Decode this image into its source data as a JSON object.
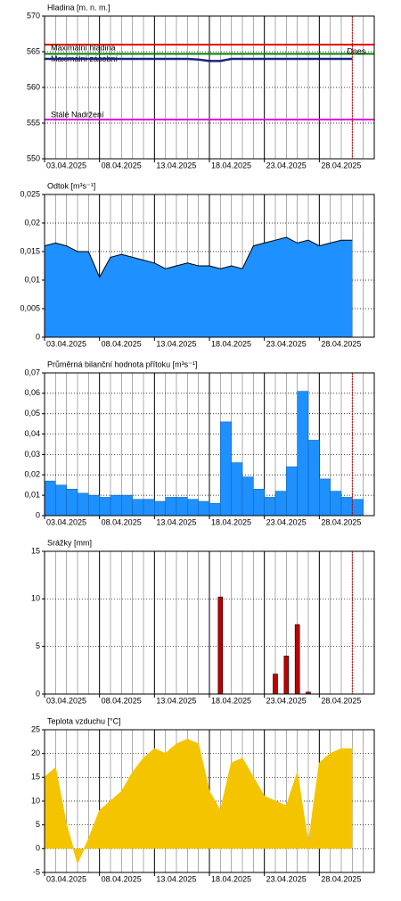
{
  "chart_data": [
    {
      "type": "line",
      "title": "Hladina [m. n. m.]",
      "color": "#1a237e",
      "x": [
        "03.04.2025",
        "04.04.2025",
        "05.04.2025",
        "06.04.2025",
        "07.04.2025",
        "08.04.2025",
        "09.04.2025",
        "10.04.2025",
        "11.04.2025",
        "12.04.2025",
        "13.04.2025",
        "14.04.2025",
        "15.04.2025",
        "16.04.2025",
        "17.04.2025",
        "18.04.2025",
        "19.04.2025",
        "20.04.2025",
        "21.04.2025",
        "22.04.2025",
        "23.04.2025",
        "24.04.2025",
        "25.04.2025",
        "26.04.2025",
        "27.04.2025",
        "28.04.2025",
        "29.04.2025",
        "30.04.2025",
        "01.05.2025"
      ],
      "values": [
        564,
        564,
        564,
        564,
        564,
        564,
        564,
        564,
        564,
        564,
        564,
        564,
        564,
        564,
        563.9,
        563.7,
        563.7,
        564,
        564,
        564,
        564,
        564,
        564,
        564,
        564,
        564,
        564,
        564,
        564
      ],
      "reference_lines": [
        {
          "label": "Maximální hladina",
          "value": 566,
          "color": "#e00000",
          "text_color": "#f06020"
        },
        {
          "label": "Maximální zásobní",
          "value": 564.7,
          "color": "#008000",
          "text_color": "#2e8b57"
        },
        {
          "label": "Stálé Nadržení",
          "value": 555.5,
          "color": "#e000e0",
          "text_color": "#e000e0"
        }
      ],
      "today": {
        "label": "Dnes",
        "x": "01.05.2025",
        "color": "#c00000"
      },
      "xlim": [
        "03.04.2025",
        "03.05.2025"
      ],
      "xticks": [
        "03.04.2025",
        "08.04.2025",
        "13.04.2025",
        "18.04.2025",
        "23.04.2025",
        "28.04.2025"
      ],
      "ylim": [
        550,
        570
      ],
      "yticks": [
        550,
        555,
        560,
        565,
        570
      ],
      "grid": true
    },
    {
      "type": "area",
      "title": "Odtok [m³s⁻¹]",
      "color": "#1e90ff",
      "line_color": "#000000",
      "x": [
        "03.04.2025",
        "04.04.2025",
        "05.04.2025",
        "06.04.2025",
        "07.04.2025",
        "08.04.2025",
        "09.04.2025",
        "10.04.2025",
        "11.04.2025",
        "12.04.2025",
        "13.04.2025",
        "14.04.2025",
        "15.04.2025",
        "16.04.2025",
        "17.04.2025",
        "18.04.2025",
        "19.04.2025",
        "20.04.2025",
        "21.04.2025",
        "22.04.2025",
        "23.04.2025",
        "24.04.2025",
        "25.04.2025",
        "26.04.2025",
        "27.04.2025",
        "28.04.2025",
        "29.04.2025",
        "30.04.2025",
        "01.05.2025"
      ],
      "values": [
        0.016,
        0.0165,
        0.016,
        0.015,
        0.015,
        0.0105,
        0.014,
        0.0145,
        0.014,
        0.0135,
        0.013,
        0.012,
        0.0125,
        0.013,
        0.0125,
        0.0125,
        0.012,
        0.0125,
        0.012,
        0.016,
        0.0165,
        0.017,
        0.0175,
        0.0165,
        0.017,
        0.016,
        0.0165,
        0.017,
        0.017
      ],
      "xlim": [
        "03.04.2025",
        "03.05.2025"
      ],
      "xticks": [
        "03.04.2025",
        "08.04.2025",
        "13.04.2025",
        "18.04.2025",
        "23.04.2025",
        "28.04.2025"
      ],
      "ylim": [
        0,
        0.025
      ],
      "yticks": [
        0,
        {
          "value": 0.005,
          "label": "0,005"
        },
        {
          "value": 0.01,
          "label": "0,01"
        },
        {
          "value": 0.015,
          "label": "0,015"
        },
        {
          "value": 0.02,
          "label": "0,02"
        },
        {
          "value": 0.025,
          "label": "0,025"
        }
      ],
      "grid": true
    },
    {
      "type": "step",
      "title": "Průměrná bilanční hodnota přítoku   [m³s⁻¹]",
      "color": "#1e90ff",
      "x": [
        "03.04.2025",
        "04.04.2025",
        "05.04.2025",
        "06.04.2025",
        "07.04.2025",
        "08.04.2025",
        "09.04.2025",
        "10.04.2025",
        "11.04.2025",
        "12.04.2025",
        "13.04.2025",
        "14.04.2025",
        "15.04.2025",
        "16.04.2025",
        "17.04.2025",
        "18.04.2025",
        "19.04.2025",
        "20.04.2025",
        "21.04.2025",
        "22.04.2025",
        "23.04.2025",
        "24.04.2025",
        "25.04.2025",
        "26.04.2025",
        "27.04.2025",
        "28.04.2025",
        "29.04.2025",
        "30.04.2025",
        "01.05.2025"
      ],
      "values": [
        0.017,
        0.015,
        0.013,
        0.011,
        0.01,
        0.009,
        0.01,
        0.01,
        0.008,
        0.008,
        0.007,
        0.009,
        0.009,
        0.008,
        0.007,
        0.006,
        0.046,
        0.026,
        0.019,
        0.013,
        0.009,
        0.012,
        0.024,
        0.061,
        0.037,
        0.018,
        0.012,
        0.009,
        0.008
      ],
      "today": {
        "x": "01.05.2025",
        "color": "#c00000"
      },
      "xlim": [
        "03.04.2025",
        "03.05.2025"
      ],
      "xticks": [
        "03.04.2025",
        "08.04.2025",
        "13.04.2025",
        "18.04.2025",
        "23.04.2025",
        "28.04.2025"
      ],
      "ylim": [
        0,
        0.07
      ],
      "yticks": [
        0,
        {
          "value": 0.01,
          "label": "0,01"
        },
        {
          "value": 0.02,
          "label": "0,02"
        },
        {
          "value": 0.03,
          "label": "0,03"
        },
        {
          "value": 0.04,
          "label": "0,04"
        },
        {
          "value": 0.05,
          "label": "0,05"
        },
        {
          "value": 0.06,
          "label": "0,06"
        },
        {
          "value": 0.07,
          "label": "0,07"
        }
      ],
      "grid": true
    },
    {
      "type": "bar",
      "title": "Srážky [mm]",
      "color": "#c00000",
      "x": [
        "19.04.2025",
        "24.04.2025",
        "25.04.2025",
        "26.04.2025",
        "27.04.2025"
      ],
      "values": [
        10.2,
        2.1,
        4,
        7.3,
        0.2
      ],
      "today": {
        "x": "01.05.2025",
        "color": "#c00000"
      },
      "xlim": [
        "03.04.2025",
        "03.05.2025"
      ],
      "xticks": [
        "03.04.2025",
        "08.04.2025",
        "13.04.2025",
        "18.04.2025",
        "23.04.2025",
        "28.04.2025"
      ],
      "ylim": [
        0,
        15
      ],
      "yticks": [
        0,
        5,
        10,
        15
      ],
      "grid": true
    },
    {
      "type": "area",
      "title": "Teplota vzduchu [°C]",
      "color": "#f5c400",
      "x": [
        "03.04.2025",
        "04.04.2025",
        "05.04.2025",
        "06.04.2025",
        "07.04.2025",
        "08.04.2025",
        "09.04.2025",
        "10.04.2025",
        "11.04.2025",
        "12.04.2025",
        "13.04.2025",
        "14.04.2025",
        "15.04.2025",
        "16.04.2025",
        "17.04.2025",
        "18.04.2025",
        "19.04.2025",
        "20.04.2025",
        "21.04.2025",
        "22.04.2025",
        "23.04.2025",
        "24.04.2025",
        "25.04.2025",
        "26.04.2025",
        "27.04.2025",
        "28.04.2025",
        "29.04.2025",
        "30.04.2025",
        "01.05.2025"
      ],
      "values": [
        15,
        17,
        5,
        -3,
        2,
        8,
        10,
        12,
        16,
        19,
        21,
        20,
        22,
        23,
        22,
        12,
        8,
        18,
        19,
        15,
        11,
        10,
        9,
        16,
        1,
        18,
        20,
        21,
        21
      ],
      "xlim": [
        "03.04.2025",
        "03.05.2025"
      ],
      "xticks": [
        "03.04.2025",
        "08.04.2025",
        "13.04.2025",
        "18.04.2025",
        "23.04.2025",
        "28.04.2025"
      ],
      "ylim": [
        -5,
        25
      ],
      "yticks": [
        -5,
        0,
        5,
        10,
        15,
        20,
        25
      ],
      "grid": true
    }
  ]
}
